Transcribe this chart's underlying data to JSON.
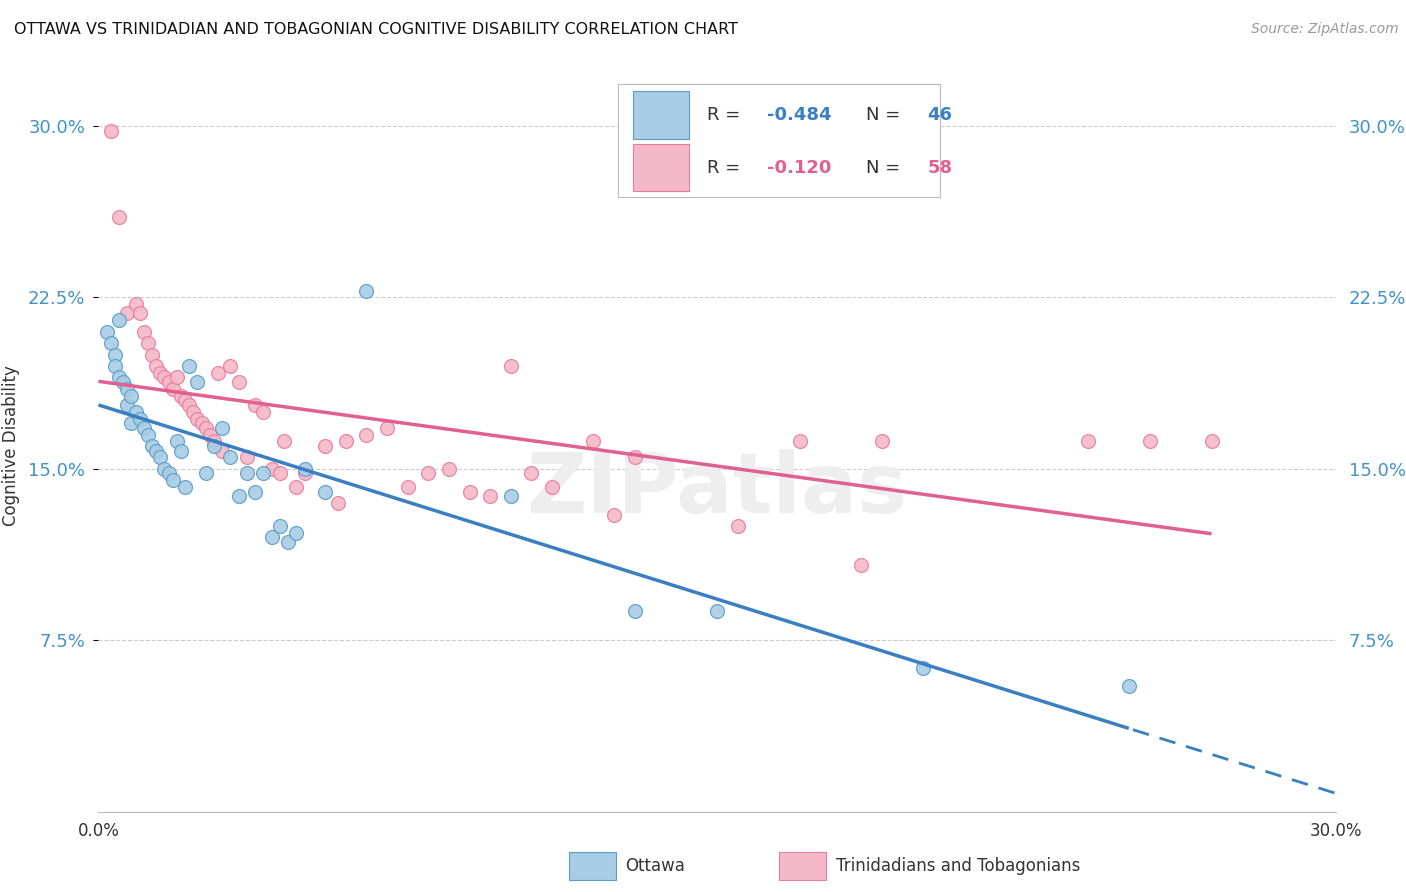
{
  "title": "OTTAWA VS TRINIDADIAN AND TOBAGONIAN COGNITIVE DISABILITY CORRELATION CHART",
  "source": "Source: ZipAtlas.com",
  "ylabel": "Cognitive Disability",
  "xlim": [
    0.0,
    0.3
  ],
  "ylim": [
    0.0,
    0.32
  ],
  "yticks": [
    0.075,
    0.15,
    0.225,
    0.3
  ],
  "ytick_labels": [
    "7.5%",
    "15.0%",
    "22.5%",
    "30.0%"
  ],
  "xticks": [
    0.0,
    0.05,
    0.1,
    0.15,
    0.2,
    0.25,
    0.3
  ],
  "xtick_labels": [
    "0.0%",
    "",
    "",
    "",
    "",
    "",
    "30.0%"
  ],
  "watermark": "ZIPatlas",
  "blue_color": "#a8cce4",
  "pink_color": "#f4b8c8",
  "blue_edge": "#5b9ec9",
  "pink_edge": "#e87da0",
  "R_blue": "-0.484",
  "N_blue": "46",
  "R_pink": "-0.120",
  "N_pink": "58",
  "label_blue": "Ottawa",
  "label_pink": "Trinidadians and Tobagonians",
  "line_blue": "#3a7fc1",
  "line_pink": "#e06090",
  "ottawa_points": [
    [
      0.002,
      0.21
    ],
    [
      0.003,
      0.205
    ],
    [
      0.004,
      0.2
    ],
    [
      0.004,
      0.195
    ],
    [
      0.005,
      0.215
    ],
    [
      0.005,
      0.19
    ],
    [
      0.006,
      0.188
    ],
    [
      0.007,
      0.185
    ],
    [
      0.007,
      0.178
    ],
    [
      0.008,
      0.182
    ],
    [
      0.008,
      0.17
    ],
    [
      0.009,
      0.175
    ],
    [
      0.01,
      0.172
    ],
    [
      0.011,
      0.168
    ],
    [
      0.012,
      0.165
    ],
    [
      0.013,
      0.16
    ],
    [
      0.014,
      0.158
    ],
    [
      0.015,
      0.155
    ],
    [
      0.016,
      0.15
    ],
    [
      0.017,
      0.148
    ],
    [
      0.018,
      0.145
    ],
    [
      0.019,
      0.162
    ],
    [
      0.02,
      0.158
    ],
    [
      0.021,
      0.142
    ],
    [
      0.022,
      0.195
    ],
    [
      0.024,
      0.188
    ],
    [
      0.026,
      0.148
    ],
    [
      0.028,
      0.16
    ],
    [
      0.03,
      0.168
    ],
    [
      0.032,
      0.155
    ],
    [
      0.034,
      0.138
    ],
    [
      0.036,
      0.148
    ],
    [
      0.038,
      0.14
    ],
    [
      0.04,
      0.148
    ],
    [
      0.042,
      0.12
    ],
    [
      0.044,
      0.125
    ],
    [
      0.046,
      0.118
    ],
    [
      0.048,
      0.122
    ],
    [
      0.05,
      0.15
    ],
    [
      0.055,
      0.14
    ],
    [
      0.065,
      0.228
    ],
    [
      0.1,
      0.138
    ],
    [
      0.13,
      0.088
    ],
    [
      0.15,
      0.088
    ],
    [
      0.2,
      0.063
    ],
    [
      0.25,
      0.055
    ]
  ],
  "trini_points": [
    [
      0.003,
      0.298
    ],
    [
      0.005,
      0.26
    ],
    [
      0.007,
      0.218
    ],
    [
      0.009,
      0.222
    ],
    [
      0.01,
      0.218
    ],
    [
      0.011,
      0.21
    ],
    [
      0.012,
      0.205
    ],
    [
      0.013,
      0.2
    ],
    [
      0.014,
      0.195
    ],
    [
      0.015,
      0.192
    ],
    [
      0.016,
      0.19
    ],
    [
      0.017,
      0.188
    ],
    [
      0.018,
      0.185
    ],
    [
      0.019,
      0.19
    ],
    [
      0.02,
      0.182
    ],
    [
      0.021,
      0.18
    ],
    [
      0.022,
      0.178
    ],
    [
      0.023,
      0.175
    ],
    [
      0.024,
      0.172
    ],
    [
      0.025,
      0.17
    ],
    [
      0.026,
      0.168
    ],
    [
      0.027,
      0.165
    ],
    [
      0.028,
      0.162
    ],
    [
      0.029,
      0.192
    ],
    [
      0.03,
      0.158
    ],
    [
      0.032,
      0.195
    ],
    [
      0.034,
      0.188
    ],
    [
      0.036,
      0.155
    ],
    [
      0.038,
      0.178
    ],
    [
      0.04,
      0.175
    ],
    [
      0.042,
      0.15
    ],
    [
      0.044,
      0.148
    ],
    [
      0.045,
      0.162
    ],
    [
      0.048,
      0.142
    ],
    [
      0.05,
      0.148
    ],
    [
      0.055,
      0.16
    ],
    [
      0.058,
      0.135
    ],
    [
      0.06,
      0.162
    ],
    [
      0.065,
      0.165
    ],
    [
      0.07,
      0.168
    ],
    [
      0.075,
      0.142
    ],
    [
      0.08,
      0.148
    ],
    [
      0.085,
      0.15
    ],
    [
      0.09,
      0.14
    ],
    [
      0.095,
      0.138
    ],
    [
      0.1,
      0.195
    ],
    [
      0.105,
      0.148
    ],
    [
      0.11,
      0.142
    ],
    [
      0.12,
      0.162
    ],
    [
      0.125,
      0.13
    ],
    [
      0.13,
      0.155
    ],
    [
      0.155,
      0.125
    ],
    [
      0.17,
      0.162
    ],
    [
      0.185,
      0.108
    ],
    [
      0.19,
      0.162
    ],
    [
      0.24,
      0.162
    ],
    [
      0.255,
      0.162
    ],
    [
      0.27,
      0.162
    ]
  ]
}
